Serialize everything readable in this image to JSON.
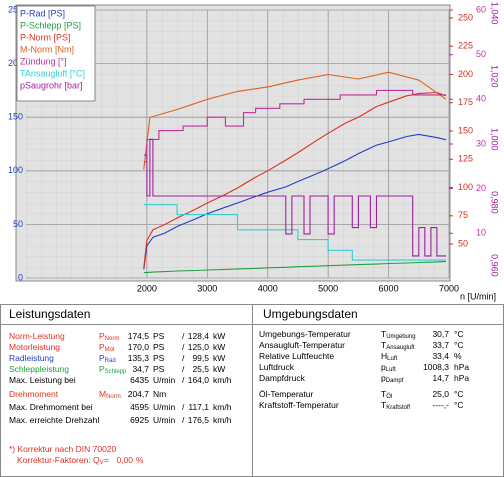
{
  "chart_data": {
    "type": "line",
    "xlabel": "n [U/min]",
    "xlim": [
      0,
      7000
    ],
    "xticks": [
      2000,
      3000,
      4000,
      5000,
      6000,
      7000
    ],
    "ylim": [
      0,
      250
    ],
    "yticks": [
      0,
      50,
      100,
      150,
      200,
      250
    ],
    "y2lim": [
      20,
      257
    ],
    "y2ticks": [
      50,
      75,
      100,
      125,
      150,
      175,
      200,
      225,
      250
    ],
    "y2color": "#d03020",
    "y3lim": [
      0,
      60
    ],
    "y3ticks": [
      10,
      20,
      30,
      40,
      50,
      60
    ],
    "y3color": "#c0309a",
    "y4lim": [
      20,
      50
    ],
    "y5lim": [
      0.956,
      1.041
    ],
    "y5ticks": [
      {
        "value": 0.96,
        "label": "0,960"
      },
      {
        "value": 0.98,
        "label": "0,980"
      },
      {
        "value": 1.0,
        "label": "1,000"
      },
      {
        "value": 1.02,
        "label": "1,020"
      },
      {
        "value": 1.04,
        "label": "1,040"
      }
    ],
    "y5color": "#a020a0",
    "grid": true,
    "series": [
      {
        "name": "P-Rad [PS]",
        "color": "#2040c0",
        "axis": "y",
        "x": [
          1950,
          2000,
          2100,
          2300,
          2500,
          2800,
          3000,
          3300,
          3500,
          3800,
          4000,
          4300,
          4500,
          4800,
          5000,
          5300,
          5500,
          5800,
          6000,
          6300,
          6500,
          6800,
          6950
        ],
        "values": [
          8,
          30,
          38,
          42,
          48,
          55,
          60,
          66,
          70,
          76,
          80,
          85,
          90,
          97,
          102,
          110,
          116,
          124,
          127,
          132,
          134,
          131,
          129
        ]
      },
      {
        "name": "P-Schlepp [PS]",
        "color": "#20a040",
        "axis": "y",
        "x": [
          1950,
          2000,
          2100,
          2300,
          2500,
          2800,
          3000,
          3300,
          3500,
          3800,
          4000,
          4300,
          4500,
          4800,
          5000,
          5300,
          5500,
          5800,
          6000,
          6300,
          6500,
          6800,
          6950
        ],
        "values": [
          5,
          5,
          5.5,
          6,
          6.5,
          7,
          7.5,
          8,
          8.5,
          9,
          9.5,
          10,
          10.5,
          11,
          11.5,
          12,
          12.5,
          13,
          13.5,
          14,
          14.5,
          15,
          15.5
        ]
      },
      {
        "name": "P-Norm [PS]",
        "color": "#e03020",
        "axis": "y",
        "x": [
          1950,
          2000,
          2100,
          2300,
          2500,
          2800,
          3000,
          3300,
          3500,
          3800,
          4000,
          4300,
          4500,
          4800,
          5000,
          5300,
          5500,
          5800,
          6000,
          6300,
          6500,
          6800,
          6950
        ],
        "values": [
          10,
          35,
          45,
          50,
          56,
          64,
          70,
          78,
          84,
          94,
          100,
          110,
          117,
          128,
          135,
          145,
          150,
          160,
          164,
          170,
          172,
          173,
          170
        ]
      },
      {
        "name": "M-Norm [Nm]",
        "color": "#e06020",
        "axis": "y2",
        "x": [
          1950,
          2050,
          2500,
          3000,
          3500,
          4000,
          4500,
          5000,
          5500,
          6000,
          6500,
          6950
        ],
        "values": [
          116,
          162,
          169,
          178,
          185,
          189,
          195,
          200,
          196,
          202,
          195,
          178
        ]
      },
      {
        "name": "Zündung [°]",
        "color": "#c0309a",
        "axis": "y3",
        "x": [
          1950,
          2000,
          2000,
          2200,
          2200,
          2600,
          2600,
          3000,
          3000,
          3300,
          3300,
          3600,
          3600,
          3800,
          3800,
          4200,
          4200,
          4600,
          4600,
          5200,
          5200,
          5800,
          5800,
          6400,
          6400,
          6950
        ],
        "values": [
          26,
          26,
          31,
          31,
          33,
          33,
          34,
          34,
          36,
          36,
          34,
          34,
          37,
          37,
          38,
          38,
          39,
          39,
          40,
          40,
          41,
          41,
          42,
          42,
          41,
          41
        ]
      },
      {
        "name": "TAnsaugluft [°C]",
        "color": "#30d0d0",
        "axis": "y4",
        "x": [
          1950,
          2500,
          2500,
          3500,
          3500,
          4500,
          4500,
          5000,
          5000,
          5400,
          5400,
          6950
        ],
        "values": [
          28.2,
          28.2,
          27.1,
          27.1,
          25.4,
          25.4,
          24.3,
          24.3,
          23.1,
          23.1,
          22.0,
          22.0
        ]
      },
      {
        "name": "pSaugrohr [bar]",
        "color": "#a020a0",
        "axis": "y5",
        "x": [
          1950,
          2000,
          2000,
          2050,
          2050,
          2100,
          2100,
          4300,
          4300,
          4400,
          4400,
          4600,
          4600,
          4700,
          4700,
          5000,
          5000,
          5100,
          5100,
          5400,
          5400,
          5500,
          5500,
          5700,
          5700,
          5800,
          5800,
          6400,
          6400,
          6500,
          6500,
          6600,
          6600,
          6700,
          6700,
          6800,
          6800,
          6950
        ],
        "values": [
          0.995,
          0.995,
          0.982,
          0.982,
          1.0,
          1.0,
          0.982,
          0.982,
          0.97,
          0.97,
          0.982,
          0.982,
          0.97,
          0.97,
          0.982,
          0.982,
          0.97,
          0.97,
          0.982,
          0.982,
          0.972,
          0.972,
          0.982,
          0.982,
          0.972,
          0.972,
          0.982,
          0.982,
          0.963,
          0.963,
          0.972,
          0.972,
          0.963,
          0.963,
          0.972,
          0.972,
          0.963,
          0.963
        ]
      }
    ]
  },
  "power": {
    "title": "Leistungsdaten",
    "rows": [
      {
        "label": "Norm-Leistung",
        "color": "#e03020",
        "symbol": "P",
        "sub": "Norm",
        "v1": "174,5",
        "u1": "PS",
        "sep": "/",
        "v2": "128,4",
        "u2": "kW"
      },
      {
        "label": "Motorleistung",
        "color": "#e03020",
        "symbol": "P",
        "sub": "Mot",
        "v1": "170,0",
        "u1": "PS",
        "sep": "/",
        "v2": "125,0",
        "u2": "kW"
      },
      {
        "label": "Radleistung",
        "color": "#2040c0",
        "symbol": "P",
        "sub": "Rad",
        "v1": "135,3",
        "u1": "PS",
        "sep": "/",
        "v2": "99,5",
        "u2": "kW"
      },
      {
        "label": "Schleppleistung",
        "color": "#20a040",
        "symbol": "P",
        "sub": "Schlepp",
        "v1": "34,7",
        "u1": "PS",
        "sep": "/",
        "v2": "25,5",
        "u2": "kW"
      },
      {
        "label": "Max. Leistung bei",
        "v1": "6435",
        "u1": "U/min",
        "sep": "/",
        "v2": "164,0",
        "u2": "km/h"
      },
      {
        "label": "Drehmoment",
        "color": "#e03020",
        "symbol": "M",
        "sub": "Norm",
        "v1": "204,7",
        "u1": "Nm"
      },
      {
        "label": "Max. Drehmoment bei",
        "v1": "4595",
        "u1": "U/min",
        "sep": "/",
        "v2": "117,1",
        "u2": "km/h"
      },
      {
        "label": "Max. erreichte Drehzahl",
        "v1": "6925",
        "u1": "U/min",
        "sep": "/",
        "v2": "176,5",
        "u2": "km/h"
      }
    ],
    "note": "*) Korrektur nach DIN 70020",
    "factor": {
      "label": "Korrektur-Faktoren:",
      "symbol": "Q",
      "sub": "V",
      "eq": "=",
      "value": "0,00",
      "unit": "%"
    }
  },
  "ambient": {
    "title": "Umgebungsdaten",
    "rows": [
      {
        "label": "Umgebungs-Temperatur",
        "symbol": "T",
        "sub": "Umgebung",
        "value": "30,7",
        "unit": "°C"
      },
      {
        "label": "Ansaugluft-Temperatur",
        "symbol": "T",
        "sub": "Ansaugluft",
        "value": "33,7",
        "unit": "°C"
      },
      {
        "label": "Relative Luftfeuchte",
        "symbol": "H",
        "sub": "Luft",
        "value": "33,4",
        "unit": "%"
      },
      {
        "label": "Luftdruck",
        "symbol": "p",
        "sub": "Luft",
        "value": "1008,3",
        "unit": "hPa"
      },
      {
        "label": "Dampfdruck",
        "symbol": "p",
        "sub": "Dampf",
        "value": "14,7",
        "unit": "hPa"
      },
      {
        "label": "Öl-Temperatur",
        "symbol": "T",
        "sub": "Öl",
        "value": "25,0",
        "unit": "°C"
      },
      {
        "label": "Kraftstoff-Temperatur",
        "symbol": "T",
        "sub": "Kraftstoff",
        "value": "----,-",
        "unit": "°C"
      }
    ]
  }
}
